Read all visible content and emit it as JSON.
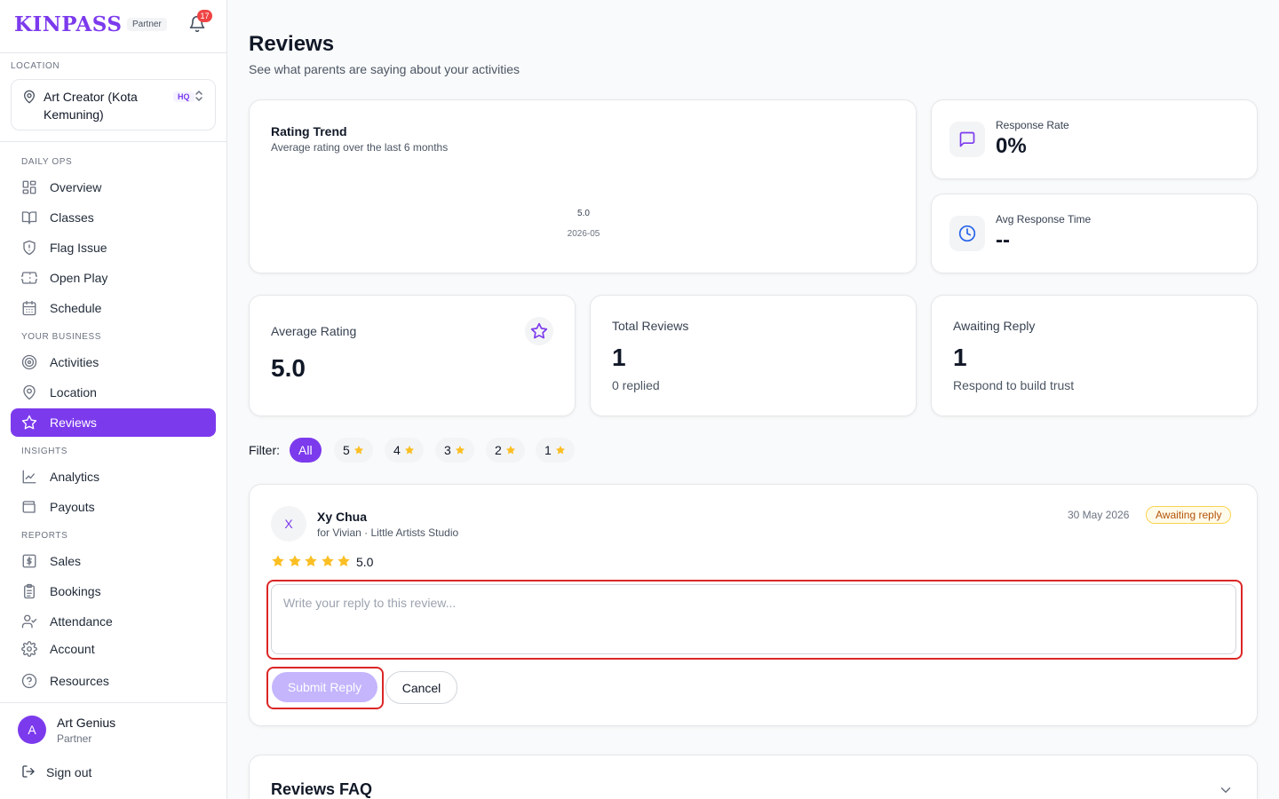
{
  "brand": {
    "logo": "KINPASS",
    "tag": "Partner",
    "notifications": "17"
  },
  "location": {
    "section": "LOCATION",
    "name": "Art Creator (Kota Kemuning)",
    "badge": "HQ"
  },
  "nav": {
    "daily_ops": "DAILY OPS",
    "your_business": "YOUR BUSINESS",
    "insights": "INSIGHTS",
    "reports": "REPORTS",
    "items": {
      "overview": "Overview",
      "classes": "Classes",
      "flag_issue": "Flag Issue",
      "open_play": "Open Play",
      "schedule": "Schedule",
      "activities": "Activities",
      "location": "Location",
      "reviews": "Reviews",
      "analytics": "Analytics",
      "payouts": "Payouts",
      "sales": "Sales",
      "bookings": "Bookings",
      "attendance": "Attendance",
      "account": "Account",
      "resources": "Resources"
    }
  },
  "user": {
    "initial": "A",
    "name": "Art Genius",
    "role": "Partner",
    "sign_out": "Sign out"
  },
  "header": {
    "title": "Reviews",
    "subtitle": "See what parents are saying about your activities"
  },
  "trend": {
    "title": "Rating Trend",
    "subtitle": "Average rating over the last 6 months"
  },
  "chart_data": {
    "type": "line",
    "x": [
      "2026-05"
    ],
    "series": [
      {
        "values": [
          5.0
        ]
      }
    ],
    "title": "Rating Trend",
    "subtitle": "Average rating over the last 6 months",
    "data_labels": [
      "5.0"
    ],
    "grid": false
  },
  "stats": {
    "response_rate": {
      "label": "Response Rate",
      "value": "0%"
    },
    "avg_response_time": {
      "label": "Avg Response Time",
      "value": "--"
    }
  },
  "metrics": {
    "average_rating": {
      "label": "Average Rating",
      "value": "5.0"
    },
    "total_reviews": {
      "label": "Total Reviews",
      "value": "1",
      "sub": "0 replied"
    },
    "awaiting_reply": {
      "label": "Awaiting Reply",
      "value": "1",
      "sub": "Respond to build trust"
    }
  },
  "filter": {
    "label": "Filter:",
    "options": [
      "All",
      "5",
      "4",
      "3",
      "2",
      "1"
    ]
  },
  "review": {
    "initial": "X",
    "name": "Xy Chua",
    "for": "for Vivian · Little Artists Studio",
    "date": "30 May 2026",
    "status": "Awaiting reply",
    "rating": 5,
    "score": "5.0",
    "reply_placeholder": "Write your reply to this review...",
    "reply_value": "",
    "submit": "Submit Reply",
    "cancel": "Cancel"
  },
  "faq": {
    "title": "Reviews FAQ"
  },
  "colors": {
    "accent": "#7c3aed",
    "star": "#fbbf24",
    "highlight": "#dc2626",
    "badge_bg": "#fffbeb",
    "badge_text": "#b45309"
  }
}
